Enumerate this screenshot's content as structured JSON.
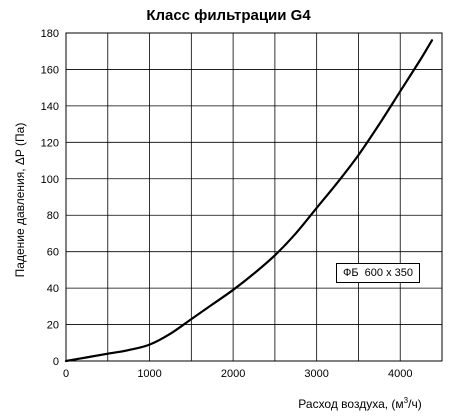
{
  "chart_data": {
    "type": "line",
    "title": "Класс фильтрации G4",
    "xlabel_prefix": "Расход воздуха, (м",
    "xlabel_sup": "3",
    "xlabel_suffix": "/ч)",
    "ylabel": "Падение давления, ΔP (Па)",
    "xlim": [
      0,
      4500
    ],
    "ylim": [
      0,
      180
    ],
    "x_ticks": [
      0,
      1000,
      2000,
      3000,
      4000
    ],
    "y_ticks": [
      0,
      20,
      40,
      60,
      80,
      100,
      120,
      140,
      160,
      180
    ],
    "x_grid_step": 500,
    "y_grid_step": 20,
    "grid": true,
    "legend_position": "right",
    "series": [
      {
        "name": "ФБ  600 x 350",
        "color": "#000000",
        "x": [
          0,
          250,
          500,
          750,
          1000,
          1250,
          1500,
          1750,
          2000,
          2250,
          2500,
          2750,
          3000,
          3250,
          3500,
          3750,
          4000,
          4250,
          4380
        ],
        "y": [
          0,
          2,
          4,
          6,
          9,
          15,
          23,
          31,
          39,
          48,
          58,
          70,
          84,
          98,
          113,
          130,
          148,
          166,
          176
        ]
      }
    ]
  }
}
